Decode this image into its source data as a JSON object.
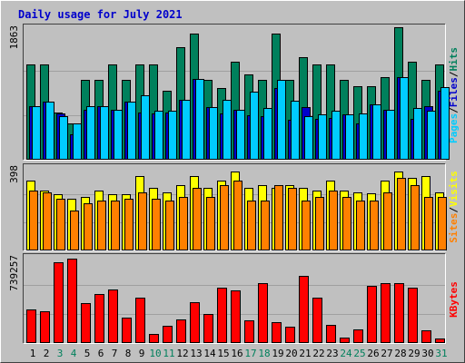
{
  "chart_data": {
    "type": "bar",
    "title": "Daily usage for July 2021",
    "title_color": "#0000CC",
    "background": "#C0C0C0",
    "categories": [
      "1",
      "2",
      "3",
      "4",
      "5",
      "6",
      "7",
      "8",
      "9",
      "10",
      "11",
      "12",
      "13",
      "14",
      "15",
      "16",
      "17",
      "18",
      "19",
      "20",
      "21",
      "22",
      "23",
      "24",
      "25",
      "26",
      "27",
      "28",
      "29",
      "30",
      "31"
    ],
    "weekend_days": [
      "3",
      "4",
      "10",
      "11",
      "17",
      "18",
      "24",
      "25",
      "31"
    ],
    "weekend_color": "#00805C",
    "weekday_color": "#000000",
    "panels": [
      {
        "name": "pages-files-hits",
        "ymax_label": "1863",
        "ymax": 1863,
        "legend": [
          {
            "text": "Pages",
            "color": "#00CCFF"
          },
          {
            "text": "Files",
            "color": "#0000CC"
          },
          {
            "text": "Hits",
            "color": "#00805C"
          }
        ],
        "legend_sep": "/",
        "series": [
          {
            "name": "Hits",
            "color": "#00805C",
            "values": [
              1330,
              1330,
              655,
              500,
              1120,
              1120,
              1330,
              1120,
              1330,
              1330,
              958,
              1583,
              1770,
              1120,
              1000,
              1380,
              1190,
              1120,
              1770,
              1120,
              1441,
              1330,
              1330,
              1120,
              1030,
              1030,
              1160,
              1863,
              1380,
              1120,
              1330
            ]
          },
          {
            "name": "Files",
            "color": "#0000CC",
            "values": [
              750,
              805,
              640,
              345,
              700,
              740,
              695,
              815,
              655,
              640,
              660,
              840,
              1130,
              735,
              640,
              690,
              620,
              600,
              1000,
              550,
              730,
              560,
              580,
              630,
              500,
              770,
              700,
              1160,
              560,
              740,
              960
            ]
          },
          {
            "name": "Pages",
            "color": "#00CCFF",
            "values": [
              750,
              805,
              605,
              500,
              750,
              740,
              695,
              815,
              905,
              680,
              680,
              840,
              1130,
              735,
              840,
              690,
              955,
              720,
              1120,
              820,
              600,
              630,
              680,
              630,
              640,
              770,
              700,
              1160,
              720,
              680,
              1020
            ]
          }
        ]
      },
      {
        "name": "visits-sites",
        "ymax_label": "398",
        "ymax": 398,
        "legend": [
          {
            "text": "Sites",
            "color": "#FF8000"
          },
          {
            "text": "Visits",
            "color": "#FFFF00"
          }
        ],
        "legend_sep": "/",
        "series": [
          {
            "name": "Visits",
            "color": "#FFFF00",
            "values": [
              332,
              286,
              265,
              244,
              255,
              286,
              265,
              267,
              353,
              297,
              276,
              312,
              353,
              297,
              332,
              374,
              297,
              312,
              297,
              312,
              297,
              286,
              332,
              286,
              276,
              270,
              332,
              374,
              345,
              353,
              276
            ]
          },
          {
            "name": "Sites",
            "color": "#FF8000",
            "values": [
              286,
              276,
              244,
              190,
              225,
              234,
              234,
              244,
              276,
              244,
              234,
              255,
              297,
              255,
              312,
              332,
              234,
              234,
              312,
              297,
              234,
              255,
              286,
              255,
              234,
              234,
              276,
              345,
              312,
              255,
              255
            ]
          }
        ]
      },
      {
        "name": "kbytes",
        "ymax_label": "739257",
        "ymax": 739257,
        "legend": [
          {
            "text": "KBytes",
            "color": "#FF0000"
          }
        ],
        "legend_sep": "",
        "series": [
          {
            "name": "KBytes",
            "color": "#FF0000",
            "values": [
              280000,
              266000,
              690000,
              720000,
              340000,
              415000,
              460000,
              210000,
              385000,
              74000,
              140000,
              198000,
              345000,
              240000,
              470000,
              445000,
              190000,
              510000,
              175000,
              130000,
              575000,
              385000,
              152000,
              42000,
              108000,
              487000,
              512000,
              510000,
              470000,
              104000,
              30000
            ]
          }
        ]
      }
    ]
  }
}
